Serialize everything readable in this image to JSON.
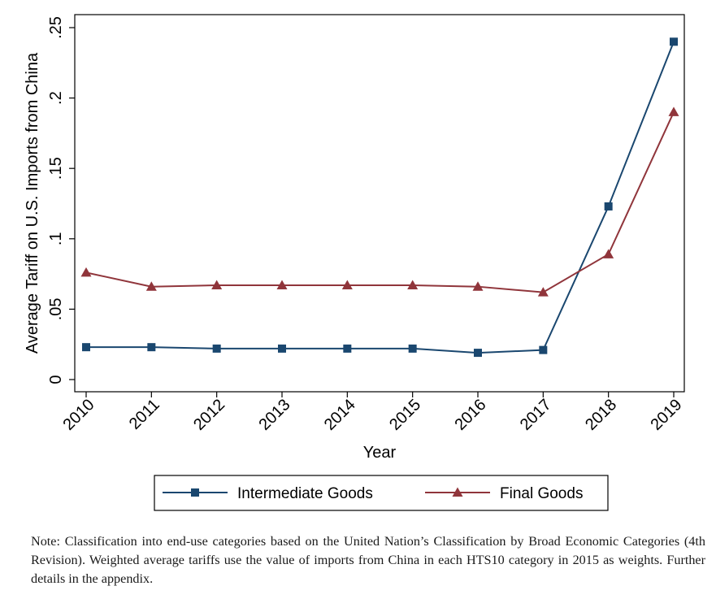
{
  "chart_data": {
    "type": "line",
    "title": "",
    "xlabel": "Year",
    "ylabel": "Average Tariff on U.S. Imports from China",
    "x": [
      2010,
      2011,
      2012,
      2013,
      2014,
      2015,
      2016,
      2017,
      2018,
      2019
    ],
    "x_tick_labels": [
      "2010",
      "2011",
      "2012",
      "2013",
      "2014",
      "2015",
      "2016",
      "2017",
      "2018",
      "2019"
    ],
    "ylim": [
      0,
      0.25
    ],
    "y_ticks": [
      0,
      0.05,
      0.1,
      0.15,
      0.2,
      0.25
    ],
    "y_tick_labels": [
      "0",
      ".05",
      ".1",
      ".15",
      ".2",
      ".25"
    ],
    "grid": false,
    "legend_position": "bottom",
    "series": [
      {
        "name": "Intermediate Goods",
        "color": "#1a476f",
        "marker": "square",
        "values": [
          0.023,
          0.023,
          0.022,
          0.022,
          0.022,
          0.022,
          0.019,
          0.021,
          0.123,
          0.24
        ]
      },
      {
        "name": "Final Goods",
        "color": "#90353b",
        "marker": "triangle",
        "values": [
          0.076,
          0.066,
          0.067,
          0.067,
          0.067,
          0.067,
          0.066,
          0.062,
          0.089,
          0.19
        ]
      }
    ]
  },
  "note": "Note: Classification into end-use categories based on the United Nation’s Classification by Broad Economic Categories (4th Revision). Weighted average tariffs use the value of imports from China in each HTS10 category in 2015 as weights. Further details in the appendix."
}
